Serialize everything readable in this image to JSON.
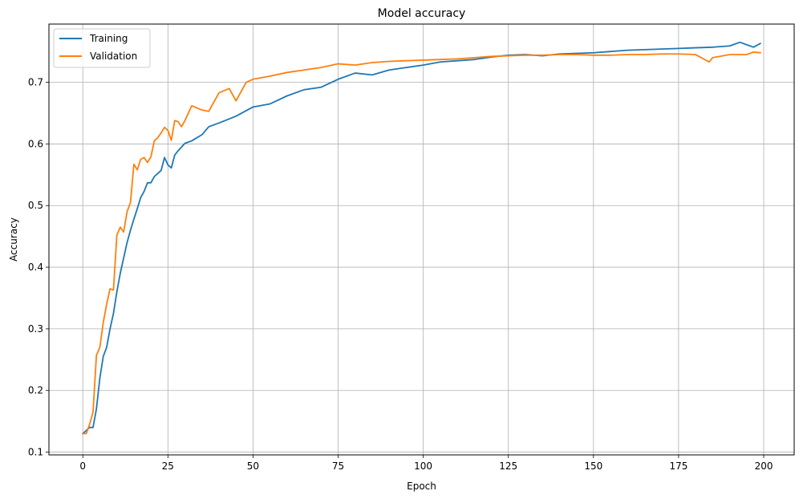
{
  "chart_data": {
    "type": "line",
    "title": "Model accuracy",
    "xlabel": "Epoch",
    "ylabel": "Accuracy",
    "xlim": [
      -9.95,
      208.95
    ],
    "ylim": [
      0.0955,
      0.7945
    ],
    "xticks": [
      0,
      25,
      50,
      75,
      100,
      125,
      150,
      175,
      200
    ],
    "yticks": [
      0.1,
      0.2,
      0.3,
      0.4,
      0.5,
      0.6,
      0.7
    ],
    "grid": true,
    "legend_position": "upper-left",
    "series": [
      {
        "name": "Training",
        "color": "#1f77b4",
        "x": [
          0,
          1,
          2,
          3,
          4,
          5,
          6,
          7,
          8,
          9,
          10,
          11,
          12,
          13,
          14,
          15,
          16,
          17,
          18,
          19,
          20,
          21,
          22,
          23,
          24,
          25,
          26,
          27,
          28,
          29,
          30,
          32,
          35,
          37,
          40,
          45,
          50,
          55,
          60,
          65,
          70,
          75,
          80,
          85,
          90,
          95,
          100,
          105,
          110,
          115,
          120,
          125,
          130,
          135,
          140,
          145,
          150,
          155,
          160,
          165,
          170,
          175,
          180,
          185,
          190,
          193,
          195,
          197,
          199
        ],
        "y": [
          0.13,
          0.135,
          0.14,
          0.14,
          0.17,
          0.22,
          0.255,
          0.27,
          0.3,
          0.325,
          0.36,
          0.39,
          0.415,
          0.44,
          0.46,
          0.478,
          0.495,
          0.513,
          0.523,
          0.537,
          0.537,
          0.547,
          0.552,
          0.557,
          0.578,
          0.566,
          0.561,
          0.582,
          0.589,
          0.595,
          0.601,
          0.605,
          0.615,
          0.628,
          0.634,
          0.645,
          0.66,
          0.665,
          0.678,
          0.688,
          0.692,
          0.705,
          0.715,
          0.712,
          0.72,
          0.724,
          0.728,
          0.733,
          0.735,
          0.737,
          0.741,
          0.744,
          0.745,
          0.743,
          0.746,
          0.747,
          0.748,
          0.75,
          0.752,
          0.753,
          0.754,
          0.755,
          0.756,
          0.757,
          0.759,
          0.765,
          0.761,
          0.757,
          0.763
        ]
      },
      {
        "name": "Validation",
        "color": "#ff7f0e",
        "x": [
          0,
          1,
          2,
          3,
          4,
          5,
          6,
          7,
          8,
          9,
          10,
          11,
          12,
          13,
          14,
          15,
          16,
          17,
          18,
          19,
          20,
          21,
          22,
          23,
          24,
          25,
          26,
          27,
          28,
          29,
          30,
          32,
          35,
          37,
          40,
          43,
          45,
          48,
          50,
          55,
          60,
          65,
          70,
          75,
          80,
          85,
          90,
          95,
          100,
          105,
          110,
          115,
          120,
          125,
          130,
          135,
          140,
          145,
          150,
          155,
          160,
          165,
          170,
          175,
          180,
          184,
          185,
          190,
          195,
          197,
          199
        ],
        "y": [
          0.13,
          0.13,
          0.145,
          0.165,
          0.257,
          0.27,
          0.31,
          0.34,
          0.365,
          0.363,
          0.452,
          0.465,
          0.457,
          0.49,
          0.505,
          0.567,
          0.558,
          0.575,
          0.578,
          0.57,
          0.579,
          0.605,
          0.61,
          0.618,
          0.627,
          0.622,
          0.606,
          0.638,
          0.636,
          0.628,
          0.638,
          0.662,
          0.655,
          0.653,
          0.683,
          0.69,
          0.67,
          0.7,
          0.705,
          0.71,
          0.716,
          0.72,
          0.724,
          0.73,
          0.728,
          0.732,
          0.734,
          0.735,
          0.736,
          0.737,
          0.738,
          0.74,
          0.742,
          0.743,
          0.744,
          0.744,
          0.745,
          0.745,
          0.744,
          0.744,
          0.745,
          0.745,
          0.746,
          0.746,
          0.745,
          0.733,
          0.74,
          0.745,
          0.745,
          0.749,
          0.748
        ]
      }
    ]
  }
}
